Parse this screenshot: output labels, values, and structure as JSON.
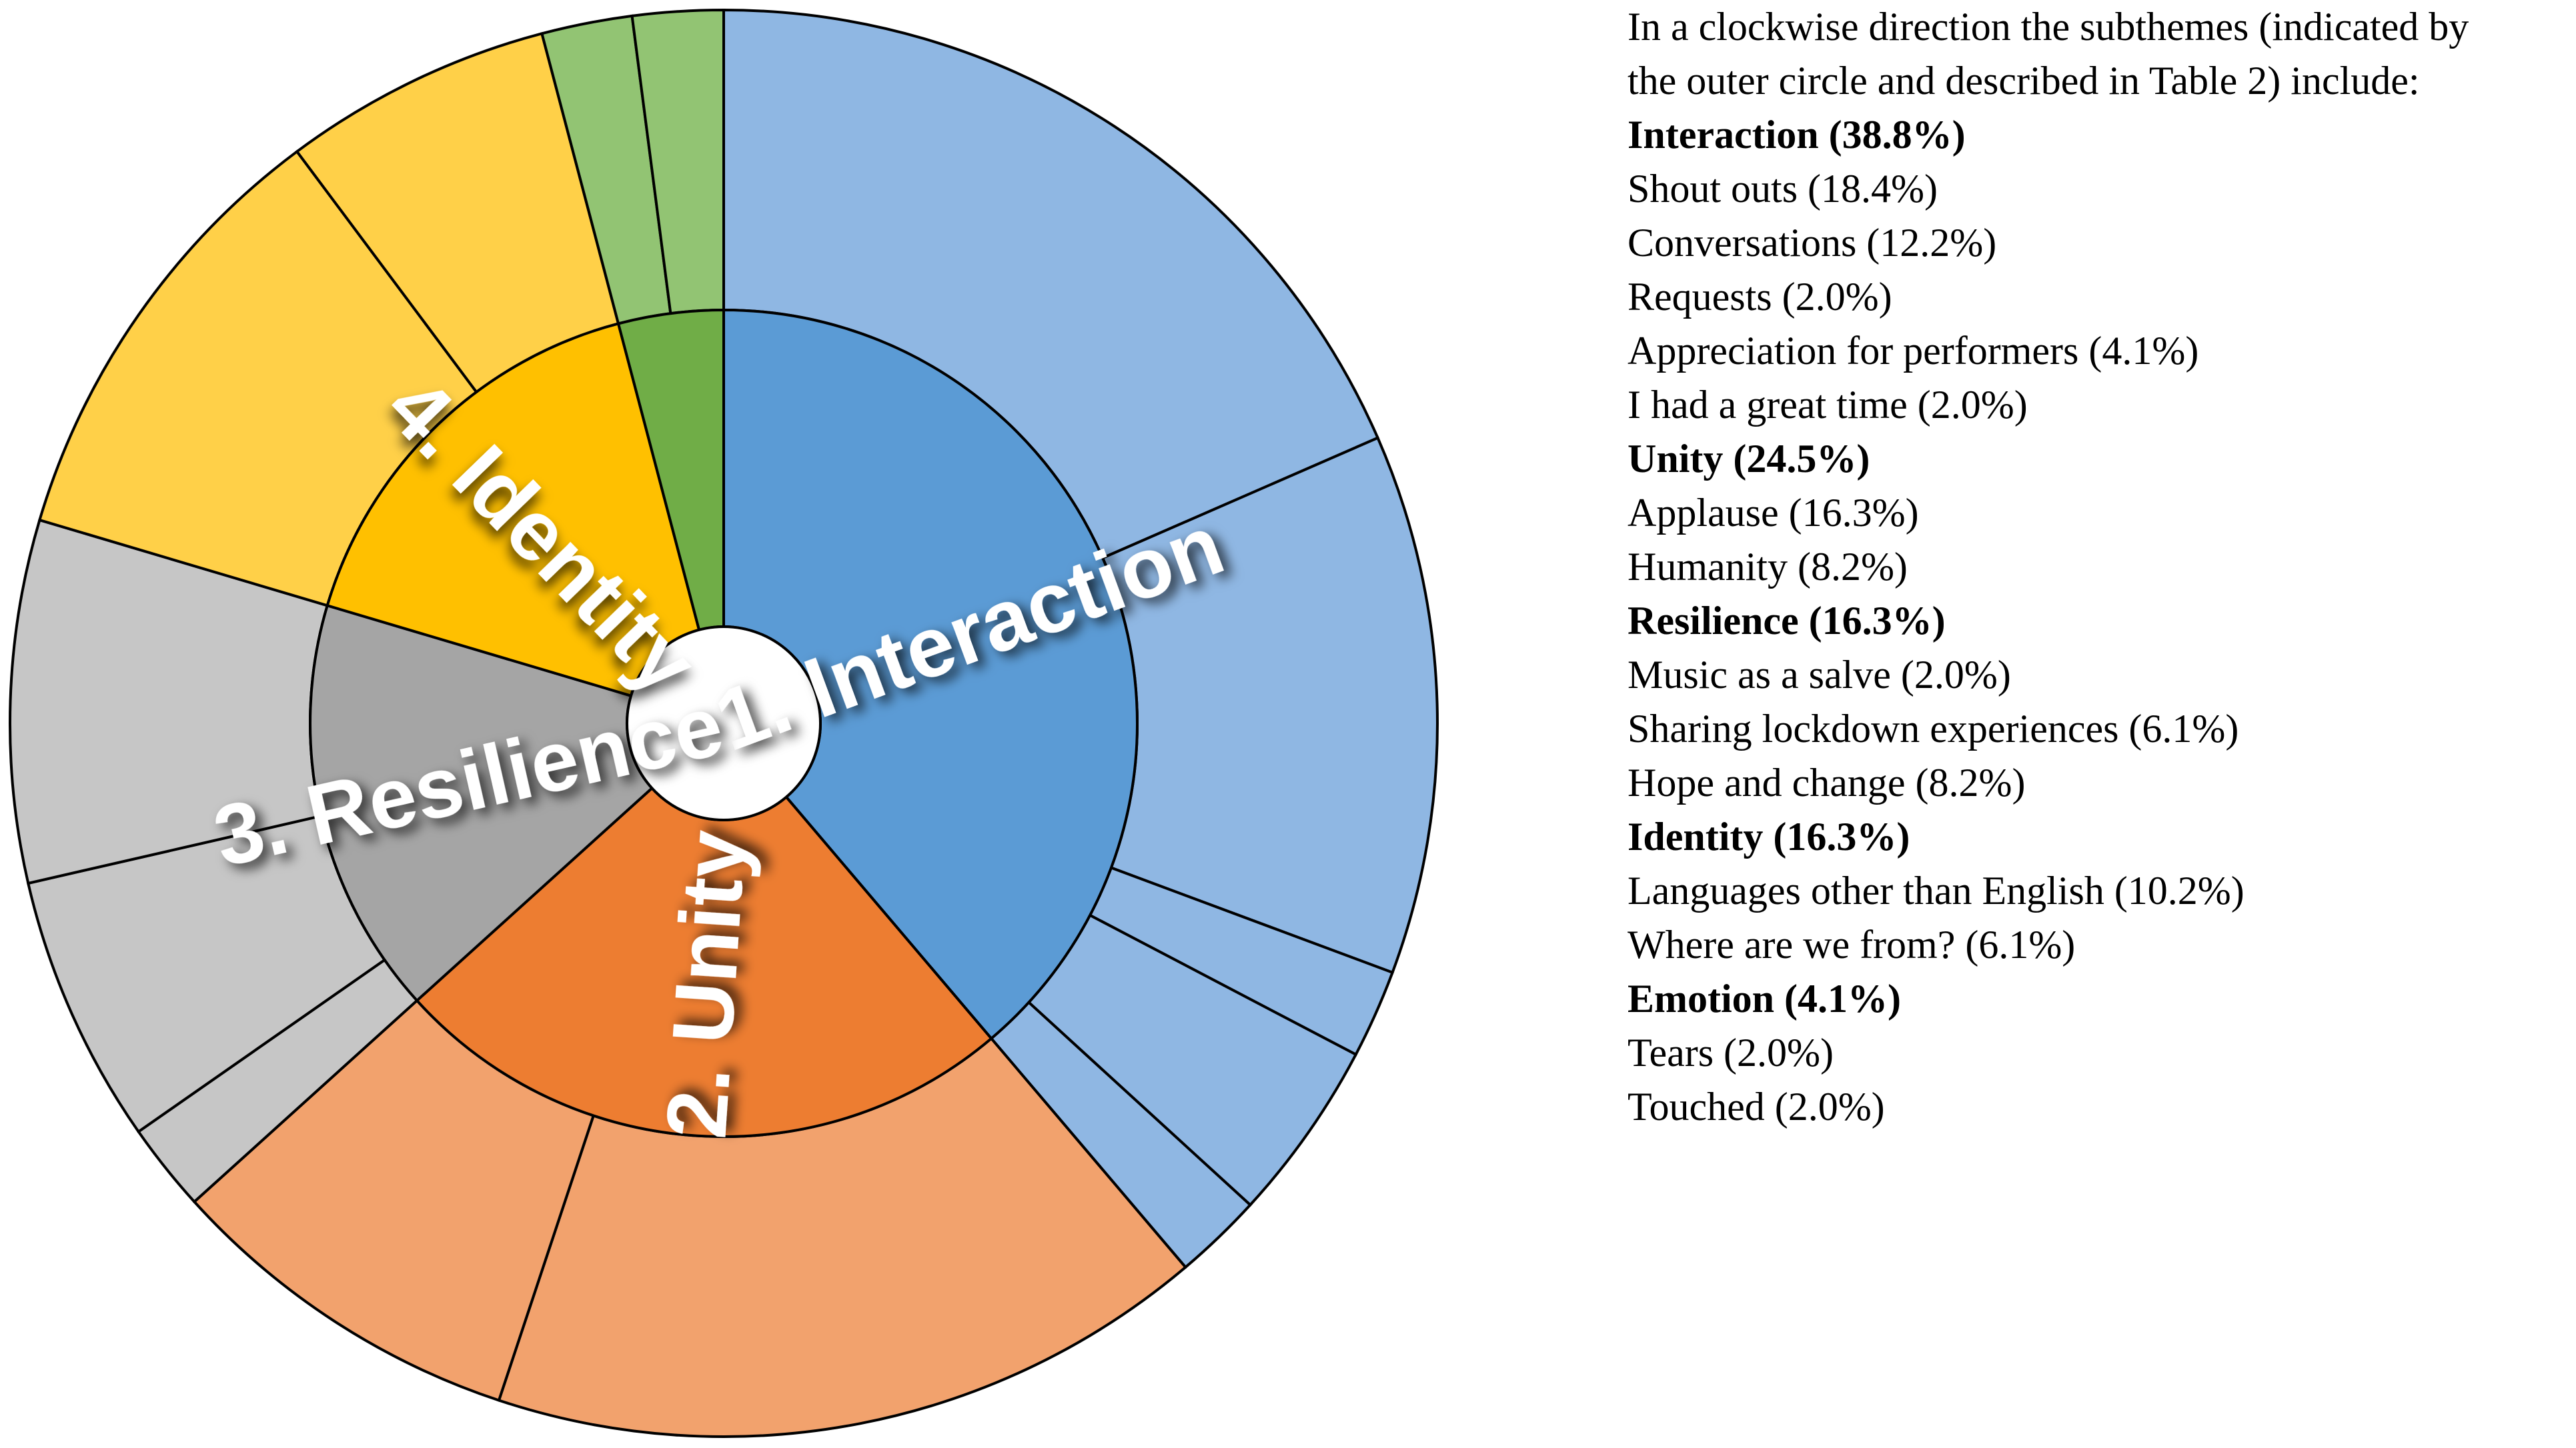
{
  "chart_data": {
    "type": "sunburst",
    "direction": "clockwise",
    "start": "top",
    "themes": [
      {
        "label": "1. Interaction",
        "legend_label": "Interaction (38.8%)",
        "value": 38.8,
        "inner_color": "#5b9bd5",
        "outer_color": "#8fb7e3",
        "subthemes": [
          {
            "label": "Shout outs (18.4%)",
            "value": 18.4
          },
          {
            "label": "Conversations (12.2%)",
            "value": 12.2
          },
          {
            "label": "Requests (2.0%)",
            "value": 2.0
          },
          {
            "label": "Appreciation for performers (4.1%)",
            "value": 4.1
          },
          {
            "label": "I had a great time (2.0%)",
            "value": 2.0
          }
        ]
      },
      {
        "label": "2. Unity",
        "legend_label": "Unity (24.5%)",
        "value": 24.5,
        "inner_color": "#ed7d31",
        "outer_color": "#f2a26d",
        "subthemes": [
          {
            "label": "Applause (16.3%)",
            "value": 16.3
          },
          {
            "label": "Humanity (8.2%)",
            "value": 8.2
          }
        ]
      },
      {
        "label": "3. Resilience",
        "legend_label": "Resilience (16.3%)",
        "value": 16.3,
        "inner_color": "#a5a5a5",
        "outer_color": "#c6c6c6",
        "subthemes": [
          {
            "label": "Music as a salve (2.0%)",
            "value": 2.0
          },
          {
            "label": "Sharing lockdown experiences (6.1%)",
            "value": 6.1
          },
          {
            "label": "Hope and change (8.2%)",
            "value": 8.2
          }
        ]
      },
      {
        "label": "4. Identity",
        "legend_label": "Identity (16.3%)",
        "value": 16.3,
        "inner_color": "#ffc000",
        "outer_color": "#ffd048",
        "subthemes": [
          {
            "label": "Languages other than English (10.2%)",
            "value": 10.2
          },
          {
            "label": "Where are we from? (6.1%)",
            "value": 6.1
          }
        ]
      },
      {
        "label": "",
        "legend_label": "Emotion (4.1%)",
        "value": 4.1,
        "inner_color": "#70ad47",
        "outer_color": "#92c473",
        "subthemes": [
          {
            "label": "Tears (2.0%)",
            "value": 2.0
          },
          {
            "label": "Touched (2.0%)",
            "value": 2.0
          }
        ]
      }
    ]
  },
  "legend": {
    "intro": [
      "In a clockwise direction the subthemes (indicated by",
      "the outer circle and described in Table 2) include:"
    ]
  }
}
